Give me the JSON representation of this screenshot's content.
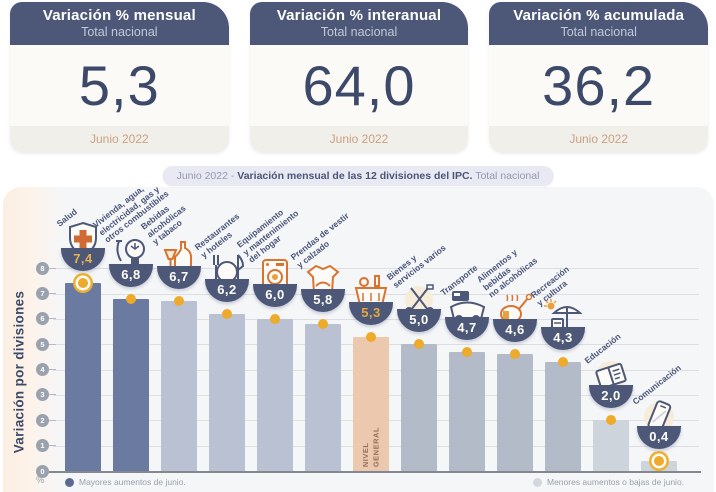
{
  "cards": [
    {
      "title": "Variación % mensual",
      "subtitle": "Total nacional",
      "value": "5,3",
      "period": "Junio 2022"
    },
    {
      "title": "Variación % interanual",
      "subtitle": "Total nacional",
      "value": "64,0",
      "period": "Junio 2022"
    },
    {
      "title": "Variación % acumulada",
      "subtitle": "Total nacional",
      "value": "36,2",
      "period": "Junio 2022"
    }
  ],
  "chart": {
    "title": {
      "prefix": "Junio 2022 - ",
      "main": "Variación mensual de las 12 divisiones del IPC.",
      "suffix": " Total nacional"
    },
    "y_axis_label": "Variación por divisiones",
    "unit_label": "%",
    "legend": [
      {
        "label": "Mayores aumentos de junio.",
        "color": "#5b6a91"
      },
      {
        "label": "Menores aumentos o bajas de junio.",
        "color": "#d3d7de"
      }
    ]
  },
  "colors": {
    "accent_gold": "#edaa2b",
    "bowl_navy": "#4d5878",
    "highlight_bar": "#ecc9ae",
    "dark_bar": "#6b7aa1",
    "light_bar": "#b6bece"
  },
  "chart_data": {
    "type": "bar",
    "title": "Junio 2022 - Variación mensual de las 12 divisiones del IPC. Total nacional",
    "ylabel": "Variación por divisiones",
    "unit": "%",
    "ylim": [
      0,
      8
    ],
    "y_ticks": [
      0,
      1,
      2,
      3,
      4,
      5,
      6,
      7,
      8
    ],
    "grid": true,
    "divisions": [
      {
        "label": "Salud",
        "label_lines": "Salud",
        "value": 7.4,
        "display": "7,4",
        "color": "#6b7aa1",
        "icon": "health-shield-icon",
        "value_color": "#e5b153",
        "marker": "ringed"
      },
      {
        "label": "Vivienda, agua, electricidad, gas y otros combustibles",
        "label_lines": "Vivienda, agua,\nelectricidad, gas y\notros combustibles",
        "value": 6.8,
        "display": "6,8",
        "color": "#6b7aa1",
        "icon": "lightbulb-icon",
        "value_color": "#ffffff",
        "marker": "dot"
      },
      {
        "label": "Bebidas alcohólicas y tabaco",
        "label_lines": "Bebidas\nalcohólicas\ny tabaco",
        "value": 6.7,
        "display": "6,7",
        "color": "#b9c1d2",
        "icon": "drinks-icon",
        "value_color": "#ffffff",
        "marker": "dot"
      },
      {
        "label": "Restaurantes y hoteles",
        "label_lines": "Restaurantes\ny hoteles",
        "value": 6.2,
        "display": "6,2",
        "color": "#b9c1d2",
        "icon": "cutlery-icon",
        "value_color": "#ffffff",
        "marker": "dot"
      },
      {
        "label": "Equipamiento y mantenimiento del hogar",
        "label_lines": "Equipamiento\ny mantenimiento\ndel hogar",
        "value": 6.0,
        "display": "6,0",
        "color": "#b9c1d2",
        "icon": "washing-machine-icon",
        "value_color": "#ffffff",
        "marker": "dot"
      },
      {
        "label": "Prendas de vestir y calzado",
        "label_lines": "Prendas de vestir\ny calzado",
        "value": 5.8,
        "display": "5,8",
        "color": "#b9c1d2",
        "icon": "tshirt-icon",
        "value_color": "#ffffff",
        "marker": "dot"
      },
      {
        "label": "NIVEL GENERAL",
        "label_lines": "",
        "inner_label": "NIVEL\nGENERAL",
        "value": 5.3,
        "display": "5,3",
        "color": "#ecc9ae",
        "icon": "basket-icon",
        "value_color": "#e5a83c",
        "marker": "dot"
      },
      {
        "label": "Bienes y servicios varios",
        "label_lines": "Bienes y\nservicios varios",
        "value": 5.0,
        "display": "5,0",
        "color": "#b3bbc9",
        "icon": "scissors-icon",
        "value_color": "#ffffff",
        "marker": "dot"
      },
      {
        "label": "Transporte",
        "label_lines": "Transporte",
        "value": 4.7,
        "display": "4,7",
        "color": "#b3bbc9",
        "icon": "bus-icon",
        "value_color": "#ffffff",
        "marker": "dot"
      },
      {
        "label": "Alimentos y bebidas no alcohólicas",
        "label_lines": "Alimentos y\nbebidas\nno alcohólicas",
        "value": 4.6,
        "display": "4,6",
        "color": "#b3bbc9",
        "icon": "chicken-icon",
        "value_color": "#ffffff",
        "marker": "dot"
      },
      {
        "label": "Recreación y cultura",
        "label_lines": "Recreación\ny cultura",
        "value": 4.3,
        "display": "4,3",
        "color": "#b3bbc9",
        "icon": "umbrella-icon",
        "value_color": "#ffffff",
        "marker": "dot"
      },
      {
        "label": "Educación",
        "label_lines": "Educación",
        "value": 2.0,
        "display": "2,0",
        "color": "#ced4db",
        "icon": "book-icon",
        "value_color": "#ffffff",
        "marker": "dot"
      },
      {
        "label": "Comunicación",
        "label_lines": "Comunicación",
        "value": 0.4,
        "display": "0,4",
        "color": "#ced4db",
        "icon": "phone-icon",
        "value_color": "#ffffff",
        "marker": "ringed"
      }
    ]
  }
}
